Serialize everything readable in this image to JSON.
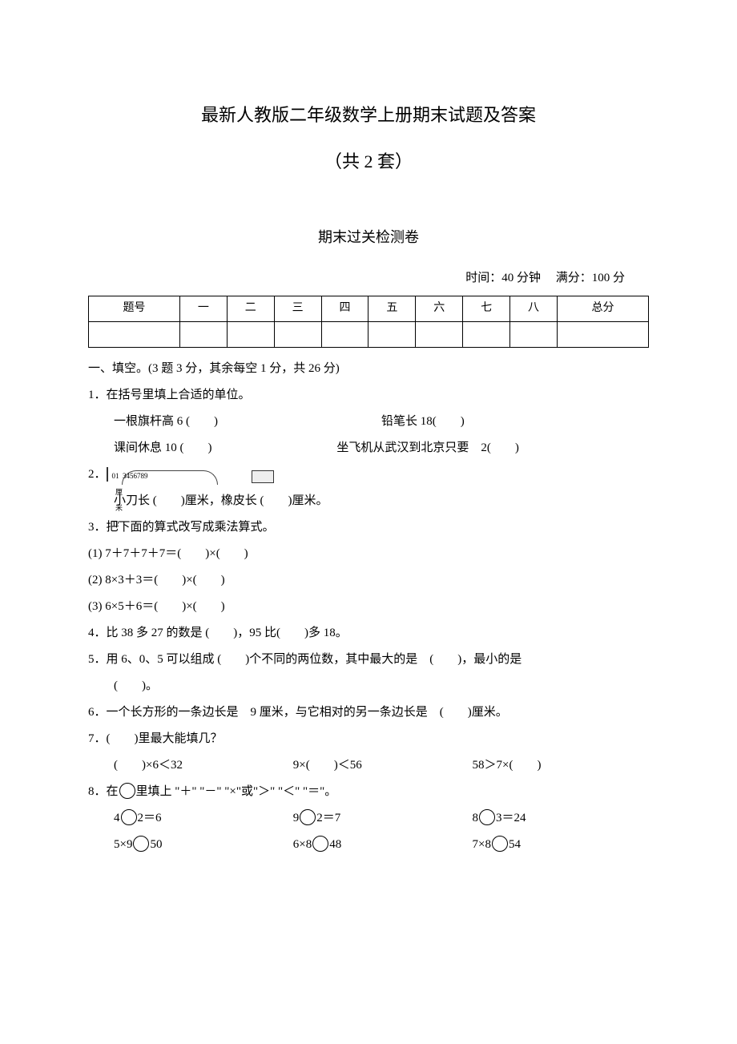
{
  "title_main": "最新人教版二年级数学上册期末试题及答案",
  "title_sub": "（共 2 套）",
  "section_title": "期末过关检测卷",
  "meta_time": "时间：40 分钟",
  "meta_full": "满分：100 分",
  "score_table": {
    "headers": [
      "题号",
      "一",
      "二",
      "三",
      "四",
      "五",
      "六",
      "七",
      "八",
      "总分"
    ]
  },
  "section1_head": "一、填空。(3 题 3 分，其余每空 1 分，共 26 分)",
  "q1": {
    "stem": "1．在括号里填上合适的单位。",
    "a": "一根旗杆高 6 (　　)",
    "b": "铅笔长 18(　　)",
    "c": "课间休息 10 (　　)",
    "d": "坐飞机从武汉到北京只要　2(　　)"
  },
  "q2": {
    "prefix": "2．",
    "line": "小刀长 (　　)厘米，橡皮长 (　　)厘米。",
    "ruler_nums": [
      "0",
      "1厘米2",
      "3",
      "4",
      "5",
      "6",
      "7",
      "8",
      "9"
    ]
  },
  "q3": {
    "stem": "3．把下面的算式改写成乘法算式。",
    "a": "(1) 7＋7＋7＋7＝(　　)×(　　)",
    "b": "(2) 8×3＋3＝(　　)×(　　)",
    "c": "(3) 6×5＋6＝(　　)×(　　)"
  },
  "q4": "4．比 38 多 27 的数是 (　　)，95 比(　　)多 18。",
  "q5": {
    "a": "5．用 6、0、5 可以组成 (　　)个不同的两位数，其中最大的是　(　　)，最小的是",
    "b": "(　　)。"
  },
  "q6": "6．一个长方形的一条边长是　9 厘米，与它相对的另一条边长是　(　　)厘米。",
  "q7": {
    "stem": "7．(　　)里最大能填几？",
    "a": "(　　)×6＜32",
    "b": "9×(　　)＜56",
    "c": "58＞7×(　　)"
  },
  "q8": {
    "stem_pre": "8．在",
    "stem_post": "里填上 \"＋\" \"－\" \"×\"或\"＞\" \"＜\" \"＝\"。",
    "r1a_pre": "4",
    "r1a_post": "2＝6",
    "r1b_pre": "9",
    "r1b_post": "2＝7",
    "r1c_pre": "8",
    "r1c_post": "3＝24",
    "r2a_pre": "5×9",
    "r2a_post": "50",
    "r2b_pre": "6×8",
    "r2b_post": "48",
    "r2c_pre": "7×8",
    "r2c_post": "54"
  }
}
